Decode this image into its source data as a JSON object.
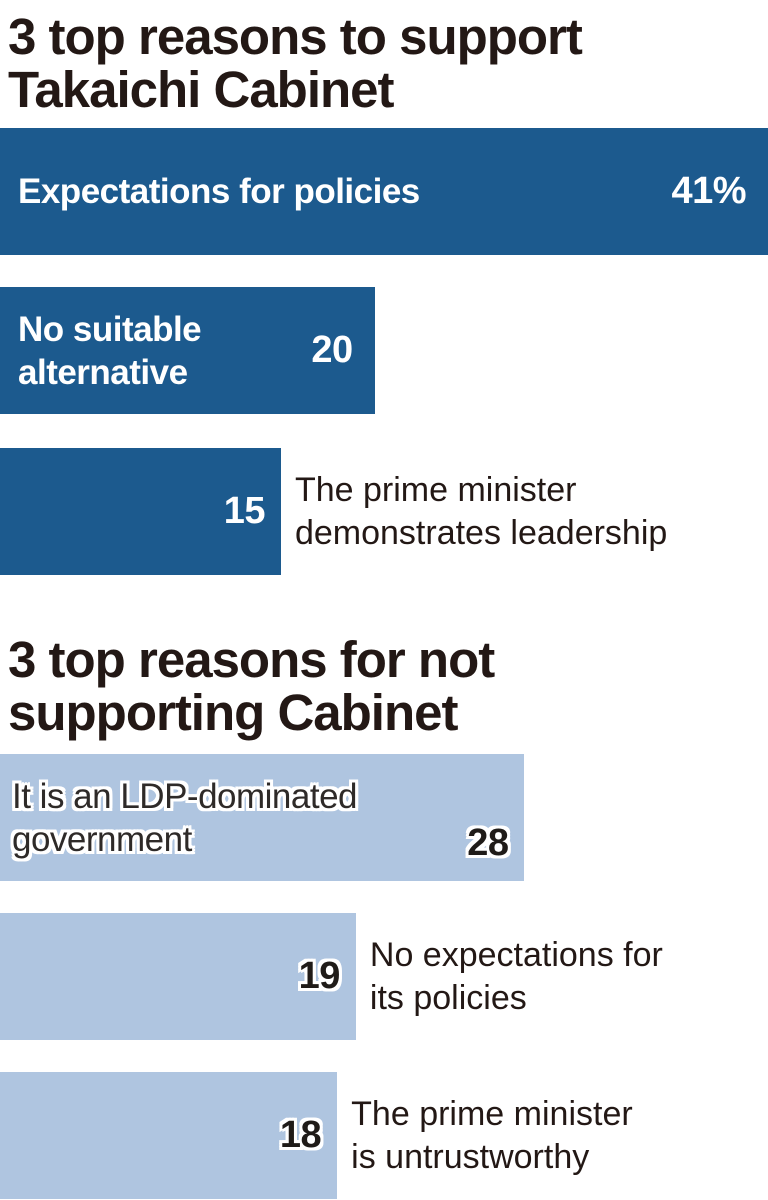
{
  "colors": {
    "support_bar": "#1c5a8e",
    "oppose_bar": "#afc5e0",
    "title_text": "#231815",
    "bar_text_light": "#ffffff",
    "oppose_label_text": "#2e2a28",
    "halo": "#ffffff"
  },
  "support": {
    "title_line1": "3 top reasons to support",
    "title_line2": "Takaichi Cabinet",
    "bar1": {
      "label": "Expectations for policies",
      "value": "41%"
    },
    "bar2": {
      "label_line1": "No suitable",
      "label_line2": "alternative",
      "value": "20"
    },
    "bar3": {
      "value": "15",
      "side_line1": "The prime minister",
      "side_line2": "demonstrates leadership"
    }
  },
  "oppose": {
    "title_line1": "3 top reasons for not",
    "title_line2": "supporting Cabinet",
    "bar1": {
      "label_line1": "It is an LDP-dominated",
      "label_line2": "government",
      "value": "28"
    },
    "bar2": {
      "value": "19",
      "side_line1": "No expectations for",
      "side_line2": "its policies"
    },
    "bar3": {
      "value": "18",
      "side_line1": "The prime minister",
      "side_line2": "is untrustworthy"
    }
  },
  "chart_data": [
    {
      "type": "bar",
      "orientation": "horizontal",
      "title": "3 top reasons to support Takaichi Cabinet",
      "unit": "percent",
      "scale_max": 41,
      "bar_color": "#1c5a8e",
      "categories": [
        "Expectations for policies",
        "No suitable alternative",
        "The prime minister demonstrates leadership"
      ],
      "values": [
        41,
        20,
        15
      ],
      "value_labels": [
        "41%",
        "20",
        "15"
      ],
      "grid": false,
      "legend": false
    },
    {
      "type": "bar",
      "orientation": "horizontal",
      "title": "3 top reasons for not supporting Cabinet",
      "unit": "percent",
      "scale_max": 41,
      "bar_color": "#afc5e0",
      "categories": [
        "It is an LDP-dominated government",
        "No expectations for its policies",
        "The prime minister is untrustworthy"
      ],
      "values": [
        28,
        19,
        18
      ],
      "value_labels": [
        "28",
        "19",
        "18"
      ],
      "grid": false,
      "legend": false
    }
  ]
}
